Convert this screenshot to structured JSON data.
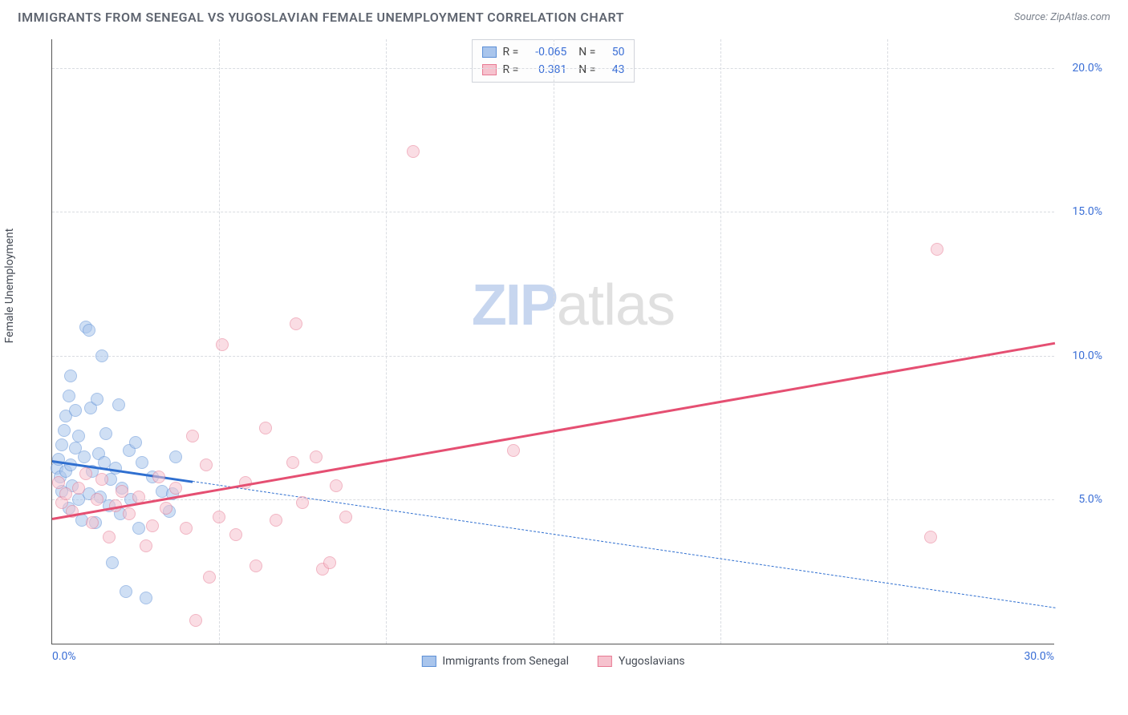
{
  "header": {
    "title": "IMMIGRANTS FROM SENEGAL VS YUGOSLAVIAN FEMALE UNEMPLOYMENT CORRELATION CHART",
    "source": "Source: ZipAtlas.com"
  },
  "ylabel": "Female Unemployment",
  "watermark": {
    "a": "ZIP",
    "b": "atlas"
  },
  "chart": {
    "type": "scatter",
    "xlim": [
      0,
      30
    ],
    "ylim": [
      0,
      21
    ],
    "x_ticks": [
      0,
      5,
      10,
      15,
      20,
      25,
      30
    ],
    "x_tick_labels": [
      "0.0%",
      "",
      "",
      "",
      "",
      "",
      "30.0%"
    ],
    "y_ticks": [
      5,
      10,
      15,
      20
    ],
    "y_tick_labels": [
      "5.0%",
      "10.0%",
      "15.0%",
      "20.0%"
    ],
    "grid_color": "#d9dce1",
    "background_color": "#ffffff",
    "marker_radius": 8,
    "marker_opacity": 0.55,
    "series": [
      {
        "id": "senegal",
        "label": "Immigrants from Senegal",
        "fill": "#a9c5ec",
        "stroke": "#5c8fd6",
        "line_color": "#2f6fd0",
        "r": "-0.065",
        "n": "50",
        "trend": {
          "x1": 0,
          "y1": 6.4,
          "x2": 30,
          "y2": 1.3,
          "solid_to_x": 4.2
        },
        "points": [
          [
            0.15,
            6.1
          ],
          [
            0.2,
            6.4
          ],
          [
            0.25,
            5.8
          ],
          [
            0.3,
            6.9
          ],
          [
            0.3,
            5.3
          ],
          [
            0.35,
            7.4
          ],
          [
            0.4,
            6.0
          ],
          [
            0.4,
            7.9
          ],
          [
            0.5,
            8.6
          ],
          [
            0.5,
            4.7
          ],
          [
            0.55,
            6.2
          ],
          [
            0.6,
            5.5
          ],
          [
            0.55,
            9.3
          ],
          [
            0.7,
            6.8
          ],
          [
            0.7,
            8.1
          ],
          [
            0.8,
            5.0
          ],
          [
            0.8,
            7.2
          ],
          [
            0.9,
            4.3
          ],
          [
            0.95,
            6.5
          ],
          [
            1.0,
            11.0
          ],
          [
            1.1,
            10.9
          ],
          [
            1.1,
            5.2
          ],
          [
            1.15,
            8.2
          ],
          [
            1.2,
            6.0
          ],
          [
            1.3,
            4.2
          ],
          [
            1.35,
            8.5
          ],
          [
            1.4,
            6.6
          ],
          [
            1.45,
            5.1
          ],
          [
            1.5,
            10.0
          ],
          [
            1.55,
            6.3
          ],
          [
            1.6,
            7.3
          ],
          [
            1.7,
            4.8
          ],
          [
            1.75,
            5.7
          ],
          [
            1.8,
            2.8
          ],
          [
            1.9,
            6.1
          ],
          [
            2.0,
            8.3
          ],
          [
            2.05,
            4.5
          ],
          [
            2.1,
            5.4
          ],
          [
            2.2,
            1.8
          ],
          [
            2.3,
            6.7
          ],
          [
            2.35,
            5.0
          ],
          [
            2.5,
            7.0
          ],
          [
            2.6,
            4.0
          ],
          [
            2.7,
            6.3
          ],
          [
            2.8,
            1.6
          ],
          [
            3.0,
            5.8
          ],
          [
            3.3,
            5.3
          ],
          [
            3.5,
            4.6
          ],
          [
            3.7,
            6.5
          ],
          [
            3.6,
            5.2
          ]
        ]
      },
      {
        "id": "yugoslavians",
        "label": "Yugoslavians",
        "fill": "#f6c2ce",
        "stroke": "#e77a93",
        "line_color": "#e54f72",
        "r": "0.381",
        "n": "43",
        "trend": {
          "x1": 0,
          "y1": 4.4,
          "x2": 30,
          "y2": 10.5,
          "solid_to_x": 30
        },
        "points": [
          [
            0.2,
            5.6
          ],
          [
            0.3,
            4.9
          ],
          [
            0.4,
            5.2
          ],
          [
            0.6,
            4.6
          ],
          [
            0.8,
            5.4
          ],
          [
            1.0,
            5.9
          ],
          [
            1.2,
            4.2
          ],
          [
            1.35,
            5.0
          ],
          [
            1.5,
            5.7
          ],
          [
            1.7,
            3.7
          ],
          [
            1.9,
            4.8
          ],
          [
            2.1,
            5.3
          ],
          [
            2.3,
            4.5
          ],
          [
            2.6,
            5.1
          ],
          [
            2.8,
            3.4
          ],
          [
            3.0,
            4.1
          ],
          [
            3.2,
            5.8
          ],
          [
            3.4,
            4.7
          ],
          [
            3.7,
            5.4
          ],
          [
            4.0,
            4.0
          ],
          [
            4.2,
            7.2
          ],
          [
            4.3,
            0.8
          ],
          [
            4.6,
            6.2
          ],
          [
            4.7,
            2.3
          ],
          [
            5.0,
            4.4
          ],
          [
            5.1,
            10.4
          ],
          [
            5.5,
            3.8
          ],
          [
            5.8,
            5.6
          ],
          [
            6.1,
            2.7
          ],
          [
            6.4,
            7.5
          ],
          [
            6.7,
            4.3
          ],
          [
            7.2,
            6.3
          ],
          [
            7.3,
            11.1
          ],
          [
            7.5,
            4.9
          ],
          [
            7.9,
            6.5
          ],
          [
            8.1,
            2.6
          ],
          [
            8.3,
            2.8
          ],
          [
            8.8,
            4.4
          ],
          [
            10.8,
            17.1
          ],
          [
            13.8,
            6.7
          ],
          [
            26.5,
            13.7
          ],
          [
            26.3,
            3.7
          ],
          [
            8.5,
            5.5
          ]
        ]
      }
    ]
  },
  "style": {
    "title_color": "#5f6570",
    "tick_color": "#3b6fd6"
  }
}
